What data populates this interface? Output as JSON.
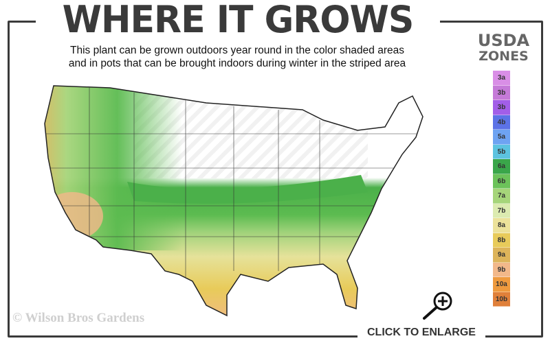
{
  "title": "WHERE IT GROWS",
  "subtitle_line1": "This plant can be grown outdoors year round in the color shaded areas",
  "subtitle_line2": "and in pots that can be brought indoors during winter in the striped area",
  "legend": {
    "title_line1": "USDA",
    "title_line2": "ZONES",
    "zones": [
      {
        "label": "3a",
        "color": "#d98ee6"
      },
      {
        "label": "3b",
        "color": "#c57ad8"
      },
      {
        "label": "3b",
        "color": "#a25ee8"
      },
      {
        "label": "4b",
        "color": "#5c72e6"
      },
      {
        "label": "5a",
        "color": "#6ea3f2"
      },
      {
        "label": "5b",
        "color": "#5cc3e0"
      },
      {
        "label": "6a",
        "color": "#3aa64a"
      },
      {
        "label": "6b",
        "color": "#6cc25a"
      },
      {
        "label": "7a",
        "color": "#a6d57a"
      },
      {
        "label": "7b",
        "color": "#dcebb0"
      },
      {
        "label": "8a",
        "color": "#ece29a"
      },
      {
        "label": "8b",
        "color": "#e8cb5a"
      },
      {
        "label": "9a",
        "color": "#ddb45a"
      },
      {
        "label": "9b",
        "color": "#f2b88a"
      },
      {
        "label": "10a",
        "color": "#ee9a3e"
      },
      {
        "label": "10b",
        "color": "#e0803a"
      }
    ]
  },
  "copyright": "© Wilson Bros Gardens",
  "enlarge_label": "CLICK TO ENLARGE",
  "icons": {
    "enlarge": "magnifier-plus-icon"
  }
}
